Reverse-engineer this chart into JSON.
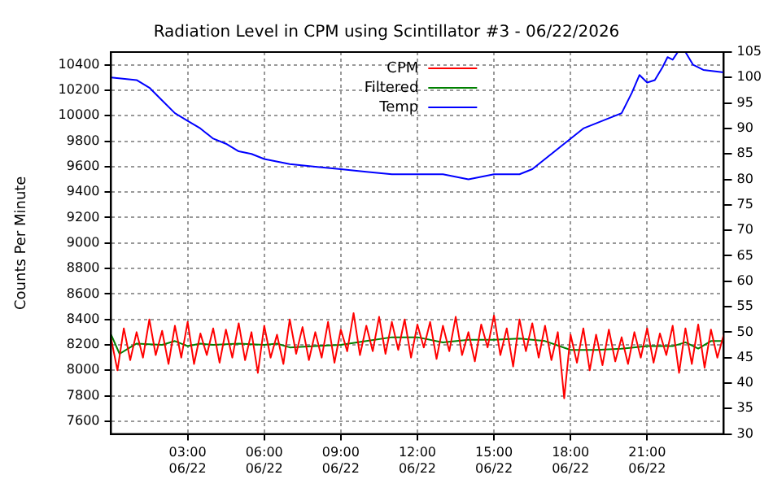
{
  "chart_data": {
    "type": "line",
    "title": "Radiation Level in CPM using Scintillator #3 - 06/22/2026",
    "ylabel": "Counts Per Minute",
    "xlim": [
      "2026-06-22T00:00",
      "2026-06-23T00:00"
    ],
    "xticks": [
      {
        "value": "2026-06-22T03:00",
        "label": "03:00\n06/22"
      },
      {
        "value": "2026-06-22T06:00",
        "label": "06:00\n06/22"
      },
      {
        "value": "2026-06-22T09:00",
        "label": "09:00\n06/22"
      },
      {
        "value": "2026-06-22T12:00",
        "label": "12:00\n06/22"
      },
      {
        "value": "2026-06-22T15:00",
        "label": "15:00\n06/22"
      },
      {
        "value": "2026-06-22T18:00",
        "label": "18:00\n06/22"
      },
      {
        "value": "2026-06-22T21:00",
        "label": "21:00\n06/22"
      }
    ],
    "ylim": [
      7500,
      10500
    ],
    "yticks": [
      7600,
      7800,
      8000,
      8200,
      8400,
      8600,
      8800,
      9000,
      9200,
      9400,
      9600,
      9800,
      10000,
      10200,
      10400
    ],
    "y2lim": [
      30,
      105
    ],
    "y2ticks": [
      30,
      35,
      40,
      45,
      50,
      55,
      60,
      65,
      70,
      75,
      80,
      85,
      90,
      95,
      100,
      105
    ],
    "grid": true,
    "legend": "top",
    "line_style": "solid",
    "series": [
      {
        "name": "CPM",
        "color": "#ff0000",
        "x": [
          "2026-06-22T00:00",
          "2026-06-22T00:15",
          "2026-06-22T00:30",
          "2026-06-22T00:45",
          "2026-06-22T01:00",
          "2026-06-22T01:15",
          "2026-06-22T01:30",
          "2026-06-22T01:45",
          "2026-06-22T02:00",
          "2026-06-22T02:15",
          "2026-06-22T02:30",
          "2026-06-22T02:45",
          "2026-06-22T03:00",
          "2026-06-22T03:15",
          "2026-06-22T03:30",
          "2026-06-22T03:45",
          "2026-06-22T04:00",
          "2026-06-22T04:15",
          "2026-06-22T04:30",
          "2026-06-22T04:45",
          "2026-06-22T05:00",
          "2026-06-22T05:15",
          "2026-06-22T05:30",
          "2026-06-22T05:45",
          "2026-06-22T06:00",
          "2026-06-22T06:15",
          "2026-06-22T06:30",
          "2026-06-22T06:45",
          "2026-06-22T07:00",
          "2026-06-22T07:15",
          "2026-06-22T07:30",
          "2026-06-22T07:45",
          "2026-06-22T08:00",
          "2026-06-22T08:15",
          "2026-06-22T08:30",
          "2026-06-22T08:45",
          "2026-06-22T09:00",
          "2026-06-22T09:15",
          "2026-06-22T09:30",
          "2026-06-22T09:45",
          "2026-06-22T10:00",
          "2026-06-22T10:15",
          "2026-06-22T10:30",
          "2026-06-22T10:45",
          "2026-06-22T11:00",
          "2026-06-22T11:15",
          "2026-06-22T11:30",
          "2026-06-22T11:45",
          "2026-06-22T12:00",
          "2026-06-22T12:15",
          "2026-06-22T12:30",
          "2026-06-22T12:45",
          "2026-06-22T13:00",
          "2026-06-22T13:15",
          "2026-06-22T13:30",
          "2026-06-22T13:45",
          "2026-06-22T14:00",
          "2026-06-22T14:15",
          "2026-06-22T14:30",
          "2026-06-22T14:45",
          "2026-06-22T15:00",
          "2026-06-22T15:15",
          "2026-06-22T15:30",
          "2026-06-22T15:45",
          "2026-06-22T16:00",
          "2026-06-22T16:15",
          "2026-06-22T16:30",
          "2026-06-22T16:45",
          "2026-06-22T17:00",
          "2026-06-22T17:15",
          "2026-06-22T17:30",
          "2026-06-22T17:45",
          "2026-06-22T18:00",
          "2026-06-22T18:15",
          "2026-06-22T18:30",
          "2026-06-22T18:45",
          "2026-06-22T19:00",
          "2026-06-22T19:15",
          "2026-06-22T19:30",
          "2026-06-22T19:45",
          "2026-06-22T20:00",
          "2026-06-22T20:15",
          "2026-06-22T20:30",
          "2026-06-22T20:45",
          "2026-06-22T21:00",
          "2026-06-22T21:15",
          "2026-06-22T21:30",
          "2026-06-22T21:45",
          "2026-06-22T22:00",
          "2026-06-22T22:15",
          "2026-06-22T22:30",
          "2026-06-22T22:45",
          "2026-06-22T23:00",
          "2026-06-22T23:15",
          "2026-06-22T23:30",
          "2026-06-22T23:45",
          "2026-06-23T00:00"
        ],
        "values": [
          8250,
          8000,
          8330,
          8080,
          8300,
          8100,
          8400,
          8120,
          8310,
          8050,
          8350,
          8100,
          8380,
          8050,
          8290,
          8120,
          8330,
          8060,
          8320,
          8100,
          8370,
          8080,
          8300,
          7980,
          8350,
          8100,
          8280,
          8050,
          8400,
          8130,
          8340,
          8080,
          8300,
          8100,
          8380,
          8060,
          8320,
          8150,
          8450,
          8120,
          8350,
          8150,
          8420,
          8130,
          8380,
          8160,
          8400,
          8100,
          8360,
          8180,
          8380,
          8090,
          8350,
          8150,
          8420,
          8120,
          8300,
          8070,
          8360,
          8180,
          8430,
          8120,
          8330,
          8030,
          8400,
          8150,
          8370,
          8100,
          8350,
          8080,
          8300,
          7780,
          8280,
          8060,
          8330,
          8000,
          8280,
          8040,
          8320,
          8070,
          8260,
          8050,
          8300,
          8100,
          8330,
          8060,
          8290,
          8120,
          8350,
          7980,
          8330,
          8050,
          8360,
          8020,
          8320,
          8100,
          8280
        ]
      },
      {
        "name": "Filtered",
        "color": "#008000",
        "x": [
          "2026-06-22T00:00",
          "2026-06-22T00:20",
          "2026-06-22T00:40",
          "2026-06-22T01:00",
          "2026-06-22T02:00",
          "2026-06-22T02:30",
          "2026-06-22T03:00",
          "2026-06-22T03:30",
          "2026-06-22T04:00",
          "2026-06-22T05:00",
          "2026-06-22T06:00",
          "2026-06-22T06:30",
          "2026-06-22T07:00",
          "2026-06-22T08:00",
          "2026-06-22T09:00",
          "2026-06-22T10:00",
          "2026-06-22T11:00",
          "2026-06-22T12:00",
          "2026-06-22T13:00",
          "2026-06-22T14:00",
          "2026-06-22T15:00",
          "2026-06-22T16:00",
          "2026-06-22T17:00",
          "2026-06-22T18:00",
          "2026-06-22T19:00",
          "2026-06-22T20:00",
          "2026-06-22T21:00",
          "2026-06-22T22:00",
          "2026-06-22T22:30",
          "2026-06-22T23:00",
          "2026-06-22T23:30",
          "2026-06-23T00:00"
        ],
        "values": [
          8280,
          8130,
          8170,
          8210,
          8200,
          8230,
          8190,
          8210,
          8200,
          8210,
          8200,
          8210,
          8180,
          8190,
          8200,
          8230,
          8260,
          8260,
          8220,
          8240,
          8240,
          8250,
          8230,
          8160,
          8160,
          8170,
          8190,
          8190,
          8220,
          8170,
          8230,
          8230
        ]
      },
      {
        "name": "Temp",
        "color": "#0000ff",
        "axis": "y2",
        "x": [
          "2026-06-22T00:00",
          "2026-06-22T01:00",
          "2026-06-22T01:30",
          "2026-06-22T02:00",
          "2026-06-22T02:30",
          "2026-06-22T03:00",
          "2026-06-22T03:30",
          "2026-06-22T04:00",
          "2026-06-22T04:30",
          "2026-06-22T05:00",
          "2026-06-22T05:30",
          "2026-06-22T06:00",
          "2026-06-22T07:00",
          "2026-06-22T08:00",
          "2026-06-22T09:00",
          "2026-06-22T10:00",
          "2026-06-22T11:00",
          "2026-06-22T12:00",
          "2026-06-22T13:00",
          "2026-06-22T14:00",
          "2026-06-22T15:00",
          "2026-06-22T16:00",
          "2026-06-22T16:30",
          "2026-06-22T17:00",
          "2026-06-22T17:30",
          "2026-06-22T18:00",
          "2026-06-22T18:30",
          "2026-06-22T19:00",
          "2026-06-22T19:30",
          "2026-06-22T20:00",
          "2026-06-22T20:24",
          "2026-06-22T20:42",
          "2026-06-22T21:00",
          "2026-06-22T21:18",
          "2026-06-22T21:36",
          "2026-06-22T21:48",
          "2026-06-22T22:00",
          "2026-06-22T22:12",
          "2026-06-22T22:30",
          "2026-06-22T22:48",
          "2026-06-22T23:12",
          "2026-06-23T00:00"
        ],
        "values": [
          100,
          99.5,
          98,
          95.5,
          93,
          91.5,
          90,
          88,
          87,
          85.5,
          85,
          84,
          83,
          82.5,
          82,
          81.5,
          81,
          81,
          81,
          80,
          81,
          81,
          82,
          84,
          86,
          88,
          90,
          91,
          92,
          93,
          97,
          100.5,
          99,
          99.5,
          102,
          104,
          103.5,
          105,
          105,
          102.5,
          101.5,
          101
        ]
      }
    ]
  }
}
